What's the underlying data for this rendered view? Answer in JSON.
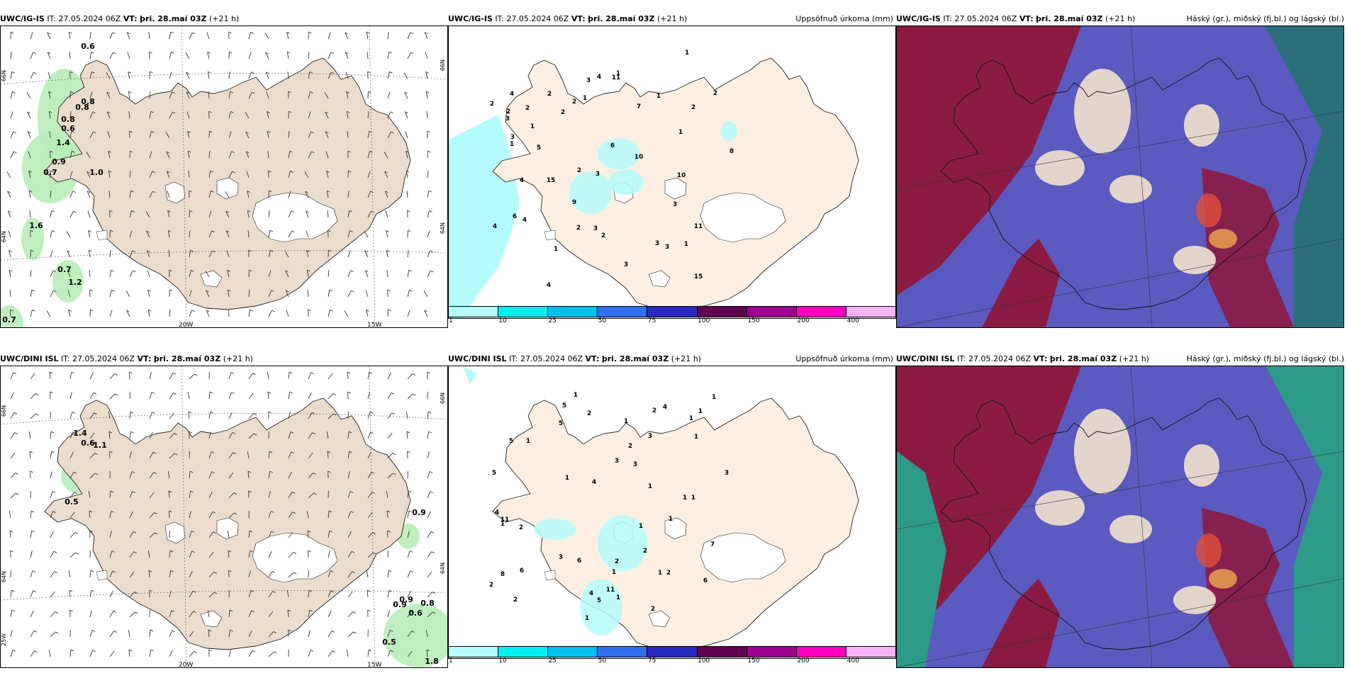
{
  "rows": [
    {
      "model": "UWC/IG-IS",
      "it_label": "IT:",
      "it_value": "27.05.2024 06Z",
      "vt_label": "VT:",
      "vt_value": "þri. 28.maí 03Z",
      "lead": "(+21 h)",
      "wind_values": [
        "0.6",
        "0.8",
        "0.8",
        "0.8",
        "0.6",
        "1.4",
        "0.9",
        "0.7",
        "1.0",
        "1.6",
        "0.7",
        "1.2",
        "0.7"
      ],
      "precip_values": [
        "3",
        "1",
        "1",
        "6",
        "1",
        "2",
        "1",
        "2",
        "4",
        "2",
        "3",
        "6",
        "2",
        "1",
        "4",
        "8",
        "3",
        "15",
        "10",
        "9",
        "3",
        "4",
        "11",
        "15",
        "3",
        "7",
        "1",
        "2",
        "2",
        "10",
        "11",
        "3",
        "4",
        "3",
        "5",
        "2",
        "2",
        "1",
        "2",
        "1",
        "1",
        "2",
        "4",
        "4",
        "3",
        "3",
        "2"
      ],
      "lon_labels": [
        "20W",
        "15W"
      ],
      "lat_labels": [
        "66N",
        "64N",
        "66N",
        "64N"
      ]
    },
    {
      "model": "UWC/DINI ISL",
      "it_label": "IT:",
      "it_value": "27.05.2024 06Z",
      "vt_label": "VT:",
      "vt_value": "þri. 28.maí 03Z",
      "lead": "(+21 h)",
      "wind_values": [
        "1.4",
        "0.6",
        "1.1",
        "0.5",
        "0.9",
        "0.9",
        "0.9",
        "0.8",
        "0.6",
        "0.5",
        "1.8"
      ],
      "precip_values": [
        "1",
        "1",
        "1",
        "4",
        "1",
        "1",
        "1",
        "2",
        "1",
        "5",
        "3",
        "6",
        "3",
        "4",
        "5",
        "4",
        "2",
        "3",
        "2",
        "5",
        "11",
        "6",
        "2",
        "5",
        "6",
        "1",
        "1",
        "11",
        "1",
        "7",
        "1",
        "2",
        "8",
        "5",
        "2",
        "3",
        "2",
        "2",
        "1",
        "1",
        "2",
        "1",
        "4",
        "3",
        "2",
        "1",
        "1",
        "1",
        "1"
      ],
      "lon_labels": [
        "20W",
        "15W"
      ],
      "lat_labels": [
        "66N",
        "64N",
        "25W",
        "66N",
        "64N"
      ]
    }
  ],
  "precip_title": "Uppsöfnuð úrkoma (mm)",
  "cloud_title": "Háský (gr.), miðský (fj.bl.) og lágský (bl.)",
  "colorbar": {
    "labels": [
      "1",
      "10",
      "25",
      "50",
      "75",
      "100",
      "150",
      "200",
      "400"
    ],
    "colors": [
      "#b4fbfb",
      "#00f0f0",
      "#00c0ee",
      "#3070f0",
      "#2828c0",
      "#600050",
      "#a00090",
      "#ff00c0",
      "#f5b4f5"
    ]
  },
  "colors": {
    "land": "#ecdccc",
    "land_precip": "#fdf0e2",
    "glacier": "#ffffff",
    "sea": "#ffffff",
    "precip_cyan": "#b4fbfb",
    "wind_green": "#b8ecb8",
    "cloud_high": "#8a1a42",
    "cloud_mid": "#5a5ac0",
    "cloud_low": "#2e9a8a",
    "cloud_sea": "#2b6f7a"
  }
}
